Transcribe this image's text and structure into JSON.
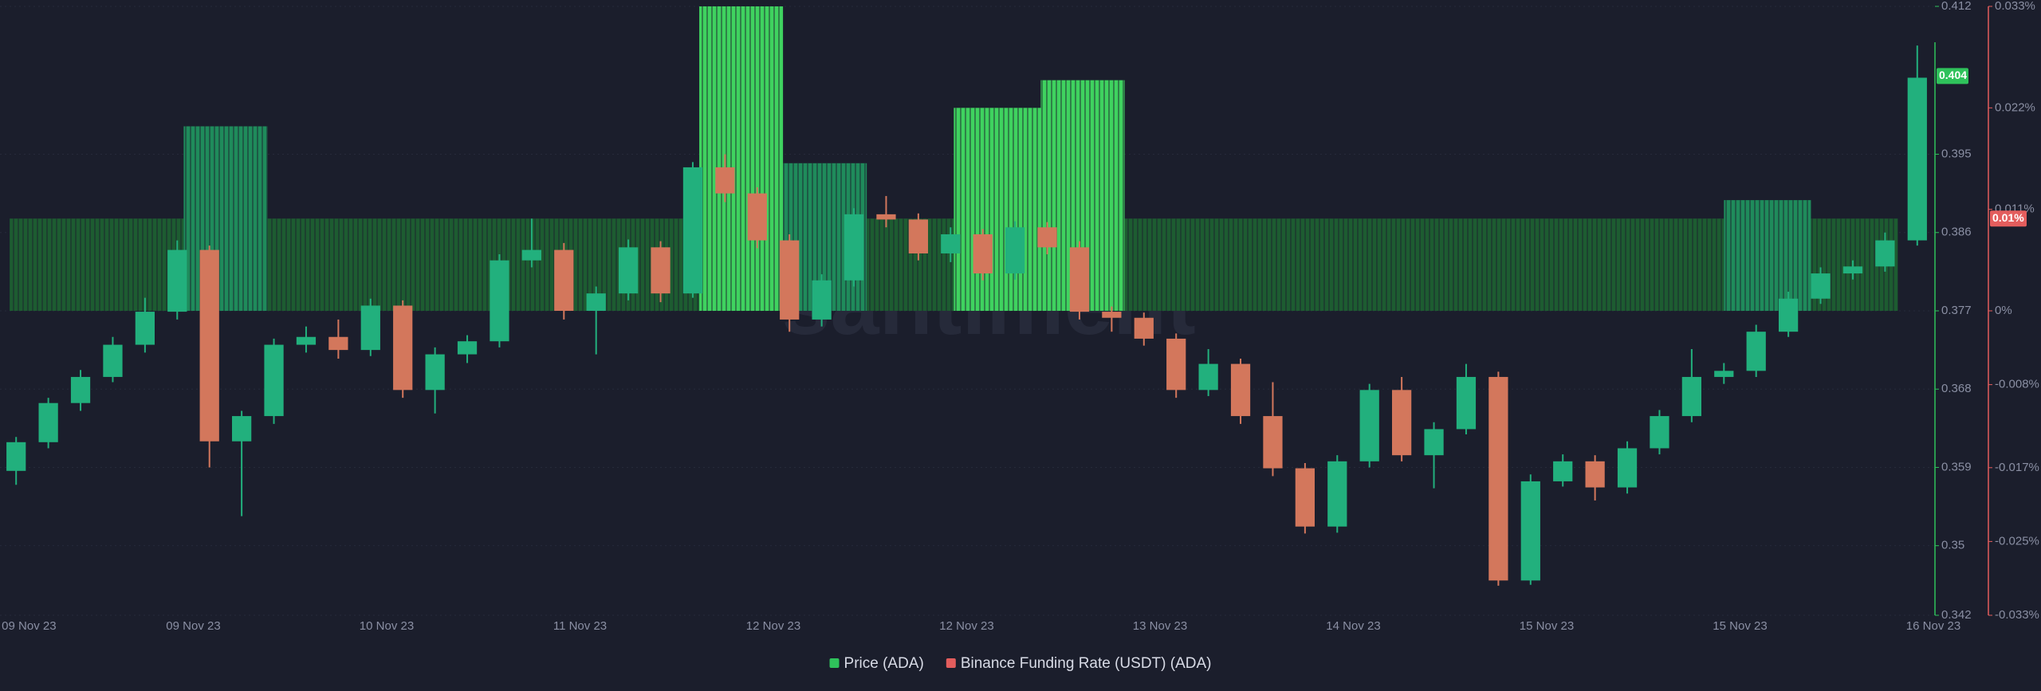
{
  "chart_data": {
    "type": "candlestick",
    "watermark": "santiment",
    "xlim": [
      0,
      60
    ],
    "xticks": [
      {
        "value": 0.9,
        "label": "09 Nov 23"
      },
      {
        "value": 6,
        "label": "09 Nov 23"
      },
      {
        "value": 12,
        "label": "10 Nov 23"
      },
      {
        "value": 18,
        "label": "11 Nov 23"
      },
      {
        "value": 24,
        "label": "12 Nov 23"
      },
      {
        "value": 30,
        "label": "12 Nov 23"
      },
      {
        "value": 36,
        "label": "13 Nov 23"
      },
      {
        "value": 42,
        "label": "14 Nov 23"
      },
      {
        "value": 48,
        "label": "15 Nov 23"
      },
      {
        "value": 54,
        "label": "15 Nov 23"
      },
      {
        "value": 60,
        "label": "16 Nov 23"
      }
    ],
    "ylim": [
      0.342,
      0.412
    ],
    "yticks": [
      0.342,
      0.35,
      0.359,
      0.368,
      0.377,
      0.386,
      0.395,
      0.412
    ],
    "y2lim": [
      -0.033,
      0.033
    ],
    "y2ticks": [
      {
        "value": -0.033,
        "label": "-0.033%"
      },
      {
        "value": -0.025,
        "label": "-0.025%"
      },
      {
        "value": -0.017,
        "label": "-0.017%"
      },
      {
        "value": -0.008,
        "label": "-0.008%"
      },
      {
        "value": 0,
        "label": "0%"
      },
      {
        "value": 0.011,
        "label": "0.011%"
      },
      {
        "value": 0.022,
        "label": "0.022%"
      },
      {
        "value": 0.033,
        "label": "0.033%"
      }
    ],
    "price_tag": 0.404,
    "funding_tag": {
      "value": 0.01,
      "label": "0.01%"
    },
    "grid": true,
    "series": [
      {
        "name": "Price (ADA)",
        "type": "candlestick",
        "color": "#2fc25b",
        "up_color": "#22b07d",
        "down_color": "#d3775c",
        "open": [
          0.3586,
          0.3619,
          0.3664,
          0.3694,
          0.3731,
          0.3769,
          0.384,
          0.362,
          0.3649,
          0.3731,
          0.374,
          0.3725,
          0.3776,
          0.3679,
          0.372,
          0.3735,
          0.3828,
          0.384,
          0.377,
          0.379,
          0.3843,
          0.379,
          0.3935,
          0.3905,
          0.3851,
          0.376,
          0.3805,
          0.3881,
          0.3875,
          0.3836,
          0.3858,
          0.3813,
          0.3866,
          0.3843,
          0.3769,
          0.3762,
          0.3738,
          0.3679,
          0.3709,
          0.3649,
          0.3589,
          0.3522,
          0.3597,
          0.3679,
          0.3604,
          0.3634,
          0.3694,
          0.346,
          0.3574,
          0.3597,
          0.3567,
          0.3612,
          0.3649,
          0.3694,
          0.3701,
          0.3746,
          0.3784,
          0.3813,
          0.3821,
          0.3851
        ],
        "high": [
          0.3625,
          0.367,
          0.3702,
          0.374,
          0.3785,
          0.3851,
          0.3845,
          0.3655,
          0.3738,
          0.3752,
          0.376,
          0.3784,
          0.3782,
          0.3728,
          0.3742,
          0.3835,
          0.3876,
          0.3848,
          0.3798,
          0.3852,
          0.385,
          0.3941,
          0.395,
          0.3912,
          0.3858,
          0.3812,
          0.3888,
          0.3902,
          0.3882,
          0.3866,
          0.3864,
          0.3873,
          0.3872,
          0.385,
          0.3775,
          0.3768,
          0.3744,
          0.3726,
          0.3715,
          0.3688,
          0.3595,
          0.3604,
          0.3686,
          0.3694,
          0.3642,
          0.3709,
          0.37,
          0.3582,
          0.3605,
          0.3604,
          0.362,
          0.3656,
          0.3726,
          0.371,
          0.3754,
          0.3792,
          0.382,
          0.3828,
          0.386,
          0.4075
        ],
        "low": [
          0.357,
          0.3612,
          0.3655,
          0.3688,
          0.3722,
          0.376,
          0.359,
          0.3534,
          0.364,
          0.3722,
          0.3715,
          0.3718,
          0.367,
          0.3652,
          0.371,
          0.3728,
          0.382,
          0.376,
          0.372,
          0.3782,
          0.378,
          0.3785,
          0.3895,
          0.3842,
          0.3746,
          0.3752,
          0.3798,
          0.3866,
          0.3828,
          0.3826,
          0.3805,
          0.3806,
          0.3835,
          0.376,
          0.3746,
          0.373,
          0.367,
          0.3672,
          0.364,
          0.358,
          0.3514,
          0.3515,
          0.359,
          0.3597,
          0.3566,
          0.3628,
          0.3454,
          0.3455,
          0.3568,
          0.3552,
          0.356,
          0.3605,
          0.3642,
          0.3686,
          0.3694,
          0.374,
          0.3778,
          0.3806,
          0.3815,
          0.3845
        ],
        "close": [
          0.3619,
          0.3664,
          0.3694,
          0.3731,
          0.3769,
          0.384,
          0.362,
          0.3649,
          0.3731,
          0.374,
          0.3725,
          0.3776,
          0.3679,
          0.372,
          0.3735,
          0.3828,
          0.384,
          0.377,
          0.379,
          0.3843,
          0.379,
          0.3935,
          0.3905,
          0.3851,
          0.376,
          0.3805,
          0.3881,
          0.3875,
          0.3836,
          0.3858,
          0.3813,
          0.3866,
          0.3843,
          0.3769,
          0.3762,
          0.3738,
          0.3679,
          0.3709,
          0.3649,
          0.3589,
          0.3522,
          0.3597,
          0.3679,
          0.3604,
          0.3634,
          0.3694,
          0.346,
          0.3574,
          0.3597,
          0.3567,
          0.3612,
          0.3649,
          0.3694,
          0.3701,
          0.3746,
          0.3784,
          0.3813,
          0.3821,
          0.3851,
          0.4038
        ]
      },
      {
        "name": "Binance Funding Rate (USDT) (ADA)",
        "type": "bar",
        "axis": "y2",
        "color": "#e35d5d",
        "bins": [
          0.3,
          5.7,
          8.3,
          21.7,
          24.3,
          26.9,
          29.6,
          32.3,
          34.9,
          53.5,
          56.2,
          58.9
        ],
        "values": [
          0.01,
          0.02,
          0.01,
          0.033,
          0.016,
          0.01,
          0.022,
          0.025,
          0.01,
          0.012,
          0.01
        ],
        "colors": [
          "#1d5c31",
          "#1f8b5b",
          "#1d5c31",
          "#3fd25f",
          "#1f8b5b",
          "#1d5c31",
          "#3fd25f",
          "#3fd25f",
          "#1d5c31",
          "#1f8b5b",
          "#1d5c31"
        ]
      }
    ]
  }
}
